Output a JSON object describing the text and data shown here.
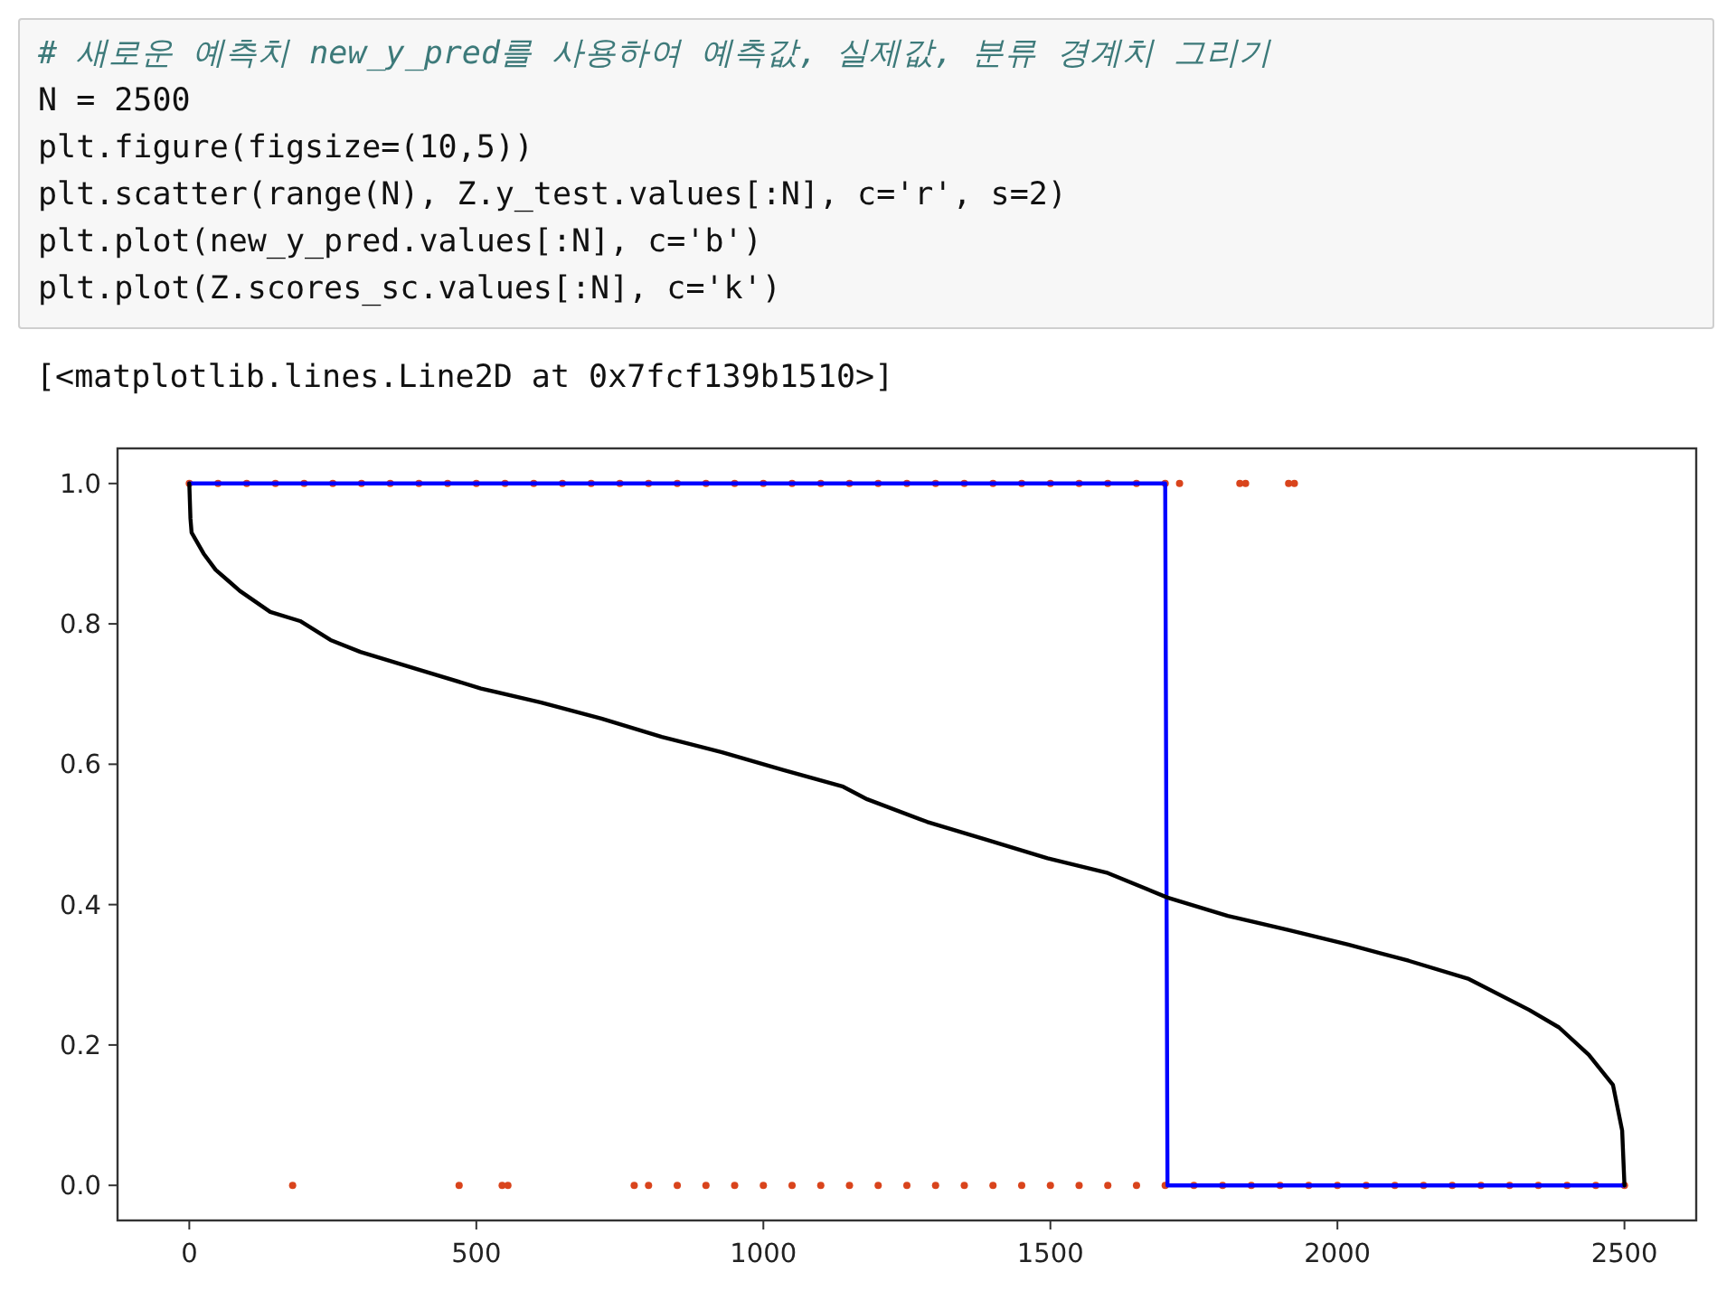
{
  "chart_data": {
    "type": "line",
    "annotations": [
      "# 새로운 예측치 new_y_pred를 사용하여 예측값, 실제값, 분류 경계치 그리기",
      "N = 2500",
      "plt.figure(figsize=(10,5))",
      "plt.scatter(range(N), Z.y_test.values[:N], c='r', s=2)",
      "plt.plot(new_y_pred.values[:N], c='b')",
      "plt.plot(Z.scores_sc.values[:N], c='k')",
      "[<matplotlib.lines.Line2D at 0x7fcf139b1510>]"
    ],
    "xlim": [
      -125,
      2625
    ],
    "ylim": [
      -0.05,
      1.05
    ],
    "xticks": [
      0,
      500,
      1000,
      1500,
      2000,
      2500
    ],
    "yticks": [
      {
        "value": 0,
        "label": "0.0"
      },
      {
        "value": 0.2,
        "label": "0.2"
      },
      {
        "value": 0.4,
        "label": "0.4"
      },
      {
        "value": 0.6,
        "label": "0.6"
      },
      {
        "value": 0.8,
        "label": "0.8"
      },
      {
        "value": 1,
        "label": "1.0"
      }
    ],
    "grid": false,
    "series": [
      {
        "type": "scatter",
        "color": "#d9441c",
        "marker": "circle",
        "x": [
          0,
          50,
          100,
          150,
          200,
          250,
          300,
          350,
          400,
          450,
          500,
          550,
          600,
          650,
          700,
          750,
          800,
          850,
          900,
          950,
          1000,
          1050,
          1100,
          1150,
          1200,
          1250,
          1300,
          1350,
          1400,
          1450,
          1500,
          1550,
          1600,
          1650,
          1700,
          1725,
          1830,
          1840,
          1915,
          1925,
          180,
          470,
          545,
          555,
          775,
          800,
          850,
          900,
          950,
          1000,
          1050,
          1100,
          1150,
          1200,
          1250,
          1300,
          1350,
          1400,
          1450,
          1500,
          1550,
          1600,
          1650,
          1700,
          1750,
          1800,
          1850,
          1900,
          1950,
          2000,
          2050,
          2100,
          2150,
          2200,
          2250,
          2300,
          2350,
          2400,
          2450,
          2500
        ],
        "values": [
          1,
          1,
          1,
          1,
          1,
          1,
          1,
          1,
          1,
          1,
          1,
          1,
          1,
          1,
          1,
          1,
          1,
          1,
          1,
          1,
          1,
          1,
          1,
          1,
          1,
          1,
          1,
          1,
          1,
          1,
          1,
          1,
          1,
          1,
          1,
          1,
          1,
          1,
          1,
          1,
          0,
          0,
          0,
          0,
          0,
          0,
          0,
          0,
          0,
          0,
          0,
          0,
          0,
          0,
          0,
          0,
          0,
          0,
          0,
          0,
          0,
          0,
          0,
          0,
          0,
          0,
          0,
          0,
          0,
          0,
          0,
          0,
          0,
          0,
          0,
          0,
          0,
          0,
          0,
          0
        ]
      },
      {
        "color": "#0000ff",
        "marker": "none",
        "line_style": "solid",
        "x": [
          0,
          1700,
          1704,
          2500
        ],
        "values": [
          1,
          1,
          0,
          0
        ]
      },
      {
        "color": "#000000",
        "marker": "none",
        "line_style": "solid",
        "x": [
          0,
          2,
          4,
          25,
          46,
          88,
          141,
          193,
          246,
          298,
          403,
          508,
          613,
          718,
          823,
          928,
          1034,
          1139,
          1181,
          1285,
          1390,
          1495,
          1600,
          1704,
          1809,
          1914,
          2019,
          2124,
          2229,
          2334,
          2386,
          2438,
          2480,
          2496,
          2500
        ],
        "values": [
          1,
          0.95,
          0.93,
          0.9,
          0.877,
          0.847,
          0.817,
          0.804,
          0.777,
          0.76,
          0.734,
          0.708,
          0.688,
          0.665,
          0.639,
          0.617,
          0.592,
          0.568,
          0.55,
          0.518,
          0.492,
          0.466,
          0.445,
          0.41,
          0.384,
          0.364,
          0.343,
          0.32,
          0.294,
          0.25,
          0.225,
          0.186,
          0.143,
          0.078,
          0
        ]
      }
    ]
  }
}
